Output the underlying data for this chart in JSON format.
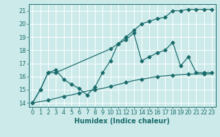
{
  "xlabel": "Humidex (Indice chaleur)",
  "bg_color": "#cceaea",
  "grid_color": "#ffffff",
  "line_color": "#1a6b6b",
  "xlim": [
    -0.5,
    23.5
  ],
  "ylim": [
    13.7,
    21.5
  ],
  "xticks": [
    0,
    1,
    2,
    3,
    4,
    5,
    6,
    7,
    8,
    9,
    10,
    11,
    12,
    13,
    14,
    15,
    16,
    17,
    18,
    19,
    20,
    21,
    22,
    23
  ],
  "yticks": [
    14,
    15,
    16,
    17,
    18,
    19,
    20,
    21
  ],
  "line1_x": [
    0,
    1,
    2,
    3,
    10,
    11,
    12,
    13,
    14,
    15,
    16,
    17,
    18,
    19,
    20,
    21,
    22,
    23
  ],
  "line1_y": [
    14.0,
    15.0,
    16.3,
    16.3,
    18.1,
    18.5,
    19.0,
    19.5,
    20.0,
    20.2,
    20.4,
    20.5,
    21.0,
    21.0,
    21.1,
    21.1,
    21.1,
    21.1
  ],
  "line2_x": [
    0,
    1,
    2,
    3,
    4,
    5,
    6,
    7,
    8,
    9,
    10,
    11,
    12,
    13,
    14,
    15,
    16,
    17,
    18,
    19,
    20,
    21,
    22,
    23
  ],
  "line2_y": [
    14.0,
    15.0,
    16.3,
    16.5,
    15.8,
    15.4,
    15.1,
    14.6,
    15.2,
    16.3,
    17.2,
    18.5,
    18.8,
    19.3,
    17.2,
    17.5,
    17.8,
    18.0,
    18.6,
    16.8,
    17.5,
    16.3,
    16.3,
    16.3
  ],
  "line3_x": [
    0,
    1,
    2,
    3,
    4,
    5,
    6,
    7,
    8,
    9,
    10,
    11,
    12,
    13,
    14,
    15,
    16,
    17,
    18,
    19,
    20,
    21,
    22,
    23
  ],
  "line3_y": [
    14.0,
    14.1,
    14.2,
    14.35,
    14.5,
    14.6,
    14.75,
    14.9,
    15.0,
    15.1,
    15.25,
    15.4,
    15.55,
    15.7,
    15.8,
    15.9,
    16.0,
    16.05,
    16.1,
    16.15,
    16.18,
    16.2,
    16.2,
    16.2
  ],
  "marker": "D",
  "markersize": 2.5,
  "linewidth": 0.9,
  "xlabel_fontsize": 7,
  "tick_fontsize": 6
}
